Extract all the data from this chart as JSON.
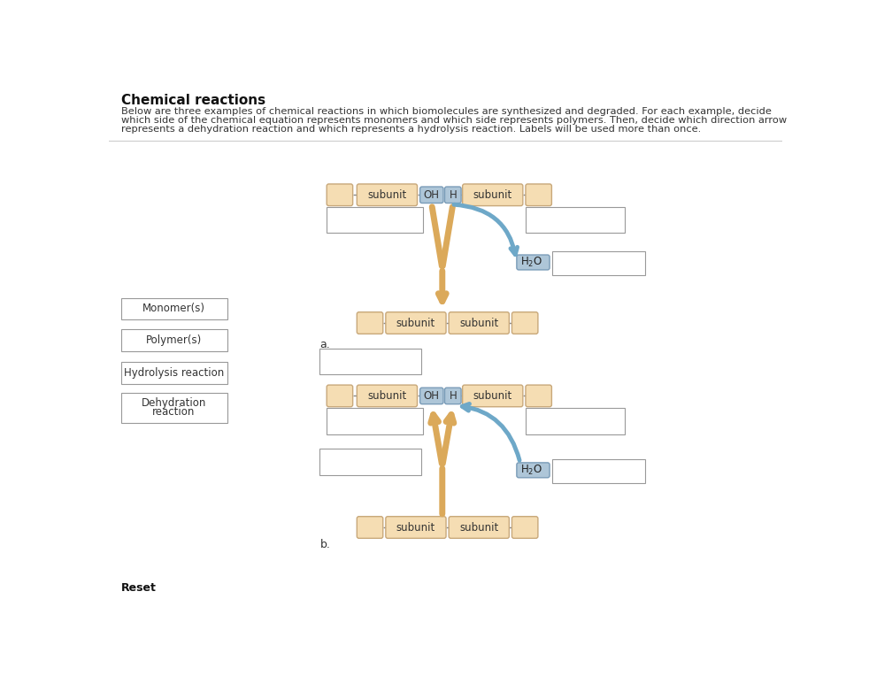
{
  "title": "Chemical reactions",
  "paragraph1": "Below are three examples of chemical reactions in which biomolecules are synthesized and degraded. For each example, decide",
  "paragraph2": "which side of the chemical equation represents monomers and which side represents polymers. Then, decide which direction arrow",
  "paragraph3": "represents a dehydration reaction and which represents a hydrolysis reaction. Labels will be used more than once.",
  "labels": [
    "Monomer(s)",
    "Polymer(s)",
    "Hydrolysis reaction",
    "Dehydration\nreaction"
  ],
  "reset_text": "Reset",
  "section_a_label": "a.",
  "section_b_label": "b.",
  "bg_color": "#ffffff",
  "box_fill_orange": "#f5ddb3",
  "box_fill_blue": "#aec6d8",
  "box_fill_white": "#ffffff",
  "border_color_orange": "#c8a87a",
  "border_color_blue": "#7a9cb8",
  "border_color_gray": "#999999",
  "arrow_orange": "#dba95a",
  "arrow_blue": "#6ea8c8",
  "text_color": "#333333"
}
